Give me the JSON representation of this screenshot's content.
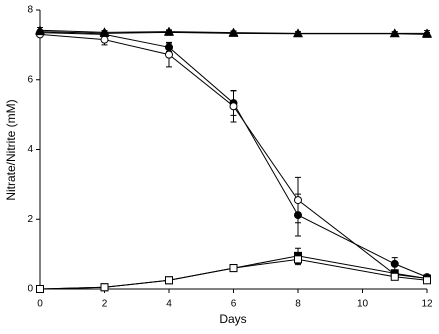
{
  "chart_data": {
    "type": "line",
    "x_label": "Days",
    "y_label": "Nitrate/Nitrite (mM)",
    "x": [
      0,
      2,
      4,
      6,
      8,
      11,
      12
    ],
    "xlim": [
      0,
      12
    ],
    "xticks": [
      0,
      2,
      4,
      6,
      8,
      10,
      12
    ],
    "ylim": [
      0,
      8
    ],
    "yticks": [
      0,
      2,
      4,
      6,
      8
    ],
    "grid": false,
    "series": [
      {
        "color": "#000000",
        "marker": "circle",
        "filled": true,
        "values": [
          7.35,
          7.3,
          6.93,
          5.33,
          2.12,
          0.72,
          0.34
        ],
        "errors": [
          0.05,
          0.05,
          0.12,
          0.35,
          0.6,
          0.18,
          0.05
        ]
      },
      {
        "color": "#000000",
        "marker": "circle",
        "filled": false,
        "values": [
          7.3,
          7.15,
          6.72,
          5.24,
          2.55,
          0.42,
          0.3
        ],
        "errors": [
          0.05,
          0.15,
          0.35,
          0.45,
          0.65,
          0.1,
          0.05
        ]
      },
      {
        "color": "#000000",
        "marker": "triangle",
        "filled": false,
        "values": [
          7.42,
          7.36,
          7.38,
          7.35,
          7.33,
          7.33,
          7.33
        ],
        "errors": [
          0.08,
          0.05,
          0.05,
          0.05,
          0.05,
          0.05,
          0.08
        ]
      },
      {
        "color": "#000000",
        "marker": "triangle",
        "filled": true,
        "values": [
          7.38,
          7.33,
          7.36,
          7.33,
          7.32,
          7.32,
          7.3
        ],
        "errors": [
          0.05,
          0.05,
          0.05,
          0.05,
          0.05,
          0.05,
          0.05
        ]
      },
      {
        "color": "#000000",
        "marker": "square",
        "filled": true,
        "values": [
          0,
          0.05,
          0.25,
          0.6,
          0.95,
          0.45,
          0.3
        ],
        "errors": [
          0.02,
          0.03,
          0.05,
          0.05,
          0.22,
          0.1,
          0.05
        ]
      },
      {
        "color": "#000000",
        "marker": "square",
        "filled": false,
        "values": [
          0,
          0.05,
          0.25,
          0.6,
          0.85,
          0.35,
          0.25
        ],
        "errors": [
          0.02,
          0.03,
          0.05,
          0.05,
          0.15,
          0.05,
          0.05
        ]
      }
    ]
  }
}
